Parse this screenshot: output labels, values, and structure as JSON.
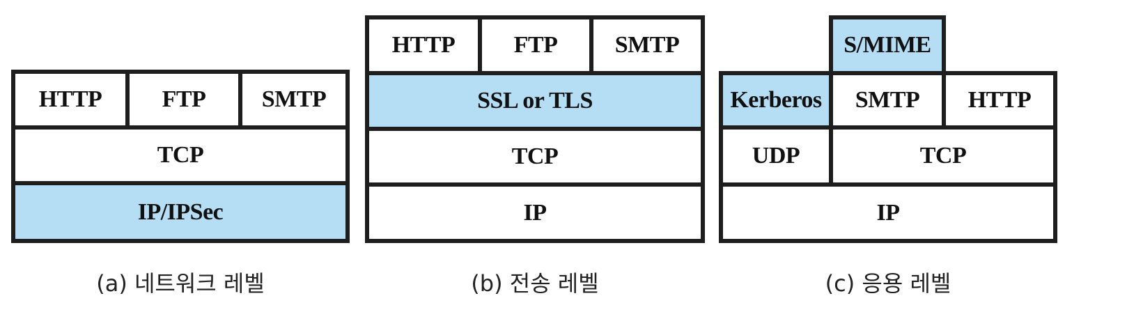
{
  "colors": {
    "highlight": "#b5def5",
    "border": "#1e1e1e",
    "fill": "#ffffff"
  },
  "network_level": {
    "http": "HTTP",
    "ftp": "FTP",
    "smtp": "SMTP",
    "tcp": "TCP",
    "ip_ipsec": "IP/IPSec",
    "caption": "(a) 네트워크 레벨"
  },
  "transport_level": {
    "http": "HTTP",
    "ftp": "FTP",
    "smtp": "SMTP",
    "ssl_tls": "SSL or TLS",
    "tcp": "TCP",
    "ip": "IP",
    "caption": "(b) 전송 레벨"
  },
  "application_level": {
    "smime": "S/MIME",
    "kerberos": "Kerberos",
    "smtp": "SMTP",
    "http": "HTTP",
    "udp": "UDP",
    "tcp": "TCP",
    "ip": "IP",
    "caption": "(c) 응용 레벨"
  }
}
